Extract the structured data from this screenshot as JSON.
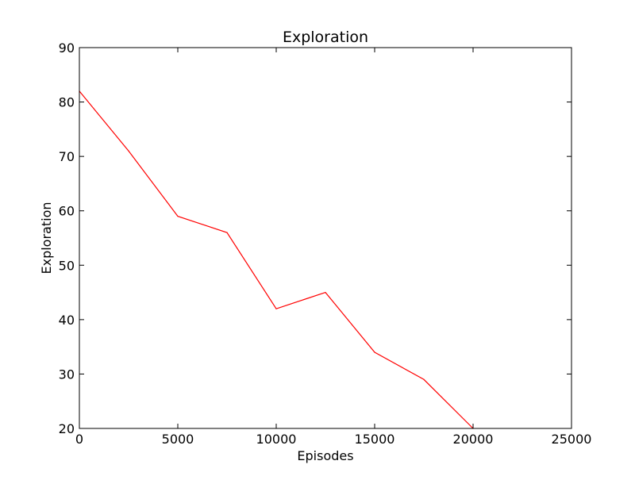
{
  "chart_data": {
    "type": "line",
    "title": "Exploration",
    "xlabel": "Episodes",
    "ylabel": "Exploration",
    "xlim": [
      0,
      25000
    ],
    "ylim": [
      20,
      90
    ],
    "xticks": [
      0,
      5000,
      10000,
      15000,
      20000,
      25000
    ],
    "yticks": [
      20,
      30,
      40,
      50,
      60,
      70,
      80,
      90
    ],
    "grid": false,
    "legend": "none",
    "series": [
      {
        "color": "#ff0000",
        "x": [
          0,
          2500,
          5000,
          7500,
          10000,
          12500,
          15000,
          17500,
          20000
        ],
        "y": [
          82,
          71,
          59,
          56,
          42,
          45,
          34,
          29,
          20
        ]
      }
    ]
  }
}
